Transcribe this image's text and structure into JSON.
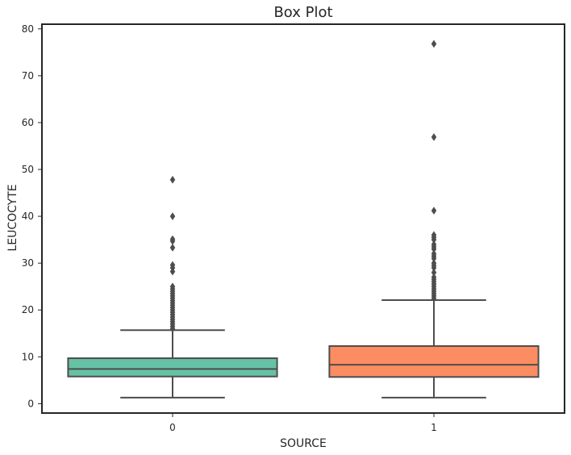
{
  "chart_data": {
    "type": "box",
    "title": "Box Plot",
    "xlabel": "SOURCE",
    "ylabel": "LEUCOCYTE",
    "categories": [
      "0",
      "1"
    ],
    "ylim": [
      -2,
      81
    ],
    "yticks": [
      0,
      10,
      20,
      30,
      40,
      50,
      60,
      70,
      80
    ],
    "grid": false,
    "colors": {
      "0": "#66c2a5",
      "1": "#fc8d62",
      "line": "#4d4d4d",
      "frame": "#262626"
    },
    "boxes": [
      {
        "category": "0",
        "whisker_low": 1.3,
        "q1": 5.8,
        "median": 7.4,
        "q3": 9.7,
        "whisker_high": 15.7,
        "outliers": [
          16.0,
          16.5,
          17.0,
          17.5,
          18.0,
          18.5,
          19.0,
          19.5,
          20.0,
          20.5,
          21.0,
          21.5,
          22.0,
          22.5,
          23.0,
          23.5,
          24.0,
          24.5,
          25.0,
          28.2,
          29.0,
          29.6,
          33.3,
          34.7,
          35.1,
          40.0,
          47.8
        ]
      },
      {
        "category": "1",
        "whisker_low": 1.3,
        "q1": 5.7,
        "median": 8.3,
        "q3": 12.3,
        "whisker_high": 22.1,
        "outliers": [
          22.5,
          23.0,
          23.5,
          24.0,
          24.5,
          25.0,
          25.5,
          26.0,
          26.5,
          27.0,
          28.0,
          29.0,
          29.5,
          30.0,
          31.0,
          31.5,
          32.0,
          33.0,
          33.5,
          34.0,
          35.0,
          35.5,
          36.0,
          41.2,
          56.9,
          76.8
        ]
      }
    ]
  }
}
